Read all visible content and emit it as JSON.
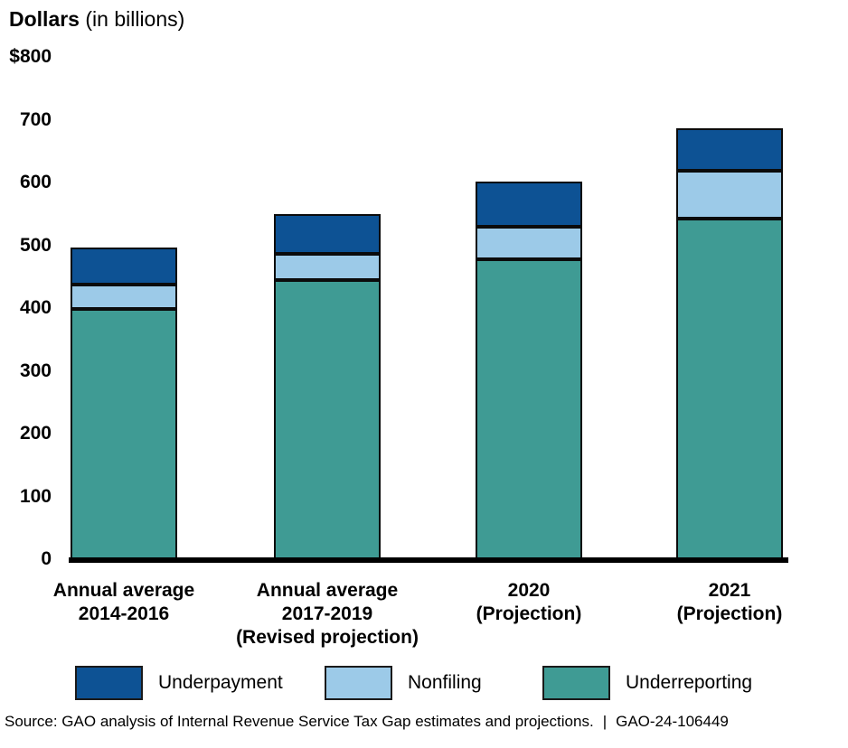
{
  "title": {
    "bold": "Dollars",
    "unit": " (in billions)"
  },
  "chart_data": {
    "type": "bar",
    "stacked": true,
    "title": "Dollars (in billions)",
    "categories": [
      "Annual average 2014-2016",
      "Annual average 2017-2019 (Revised projection)",
      "2020 (Projection)",
      "2021 (Projection)"
    ],
    "category_lines": [
      [
        "Annual average",
        "2014-2016"
      ],
      [
        "Annual average",
        "2017-2019",
        "(Revised projection)"
      ],
      [
        "2020",
        "(Projection)"
      ],
      [
        "2021",
        "(Projection)"
      ]
    ],
    "series": [
      {
        "name": "Underreporting",
        "color": "#3F9B94",
        "values": [
          398,
          445,
          478,
          542
        ]
      },
      {
        "name": "Nonfiling",
        "color": "#9CCAE8",
        "values": [
          39,
          41,
          52,
          77
        ]
      },
      {
        "name": "Underpayment",
        "color": "#0D5294",
        "values": [
          59,
          64,
          71,
          68
        ]
      }
    ],
    "totals": [
      496,
      550,
      601,
      688
    ],
    "ylim": [
      0,
      800
    ],
    "yticks": [
      0,
      100,
      200,
      300,
      400,
      500,
      600,
      700,
      800
    ],
    "ytick_labels": [
      "0",
      "100",
      "200",
      "300",
      "400",
      "500",
      "600",
      "700",
      "$800"
    ],
    "grid": false,
    "legend_position": "bottom"
  },
  "legend": {
    "items": [
      {
        "label": "Underpayment",
        "color": "#0D5294"
      },
      {
        "label": "Nonfiling",
        "color": "#9CCAE8"
      },
      {
        "label": "Underreporting",
        "color": "#3F9B94"
      }
    ]
  },
  "source": {
    "text": "Source: GAO analysis of Internal Revenue Service Tax Gap estimates and projections.",
    "separator": "|",
    "report_id": "GAO-24-106449"
  }
}
